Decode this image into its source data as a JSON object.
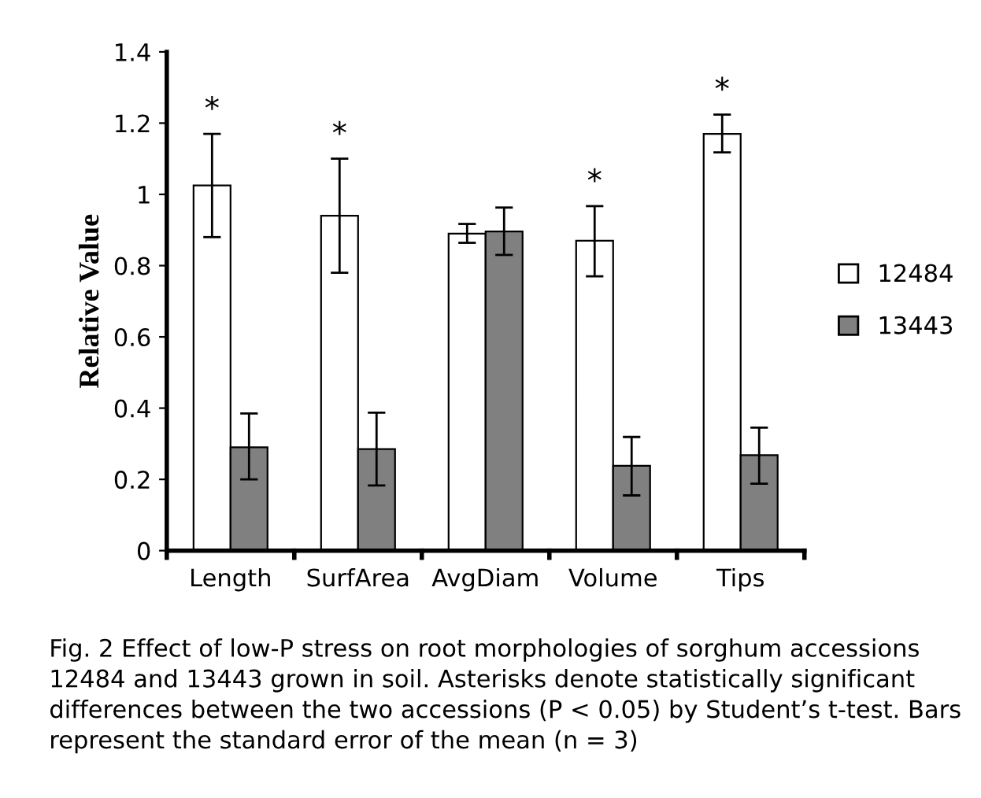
{
  "chart_data": {
    "type": "bar",
    "ylabel": "Relative Value",
    "categories": [
      "Length",
      "SurfArea",
      "AvgDiam",
      "Volume",
      "Tips"
    ],
    "series": [
      {
        "name": "12484",
        "color": "#ffffff",
        "values": [
          1.025,
          0.94,
          0.89,
          0.87,
          1.17
        ],
        "value_labels": [
          "*",
          "*",
          null,
          "*",
          "*"
        ],
        "errors": [
          [
            0.88,
            1.17
          ],
          [
            0.78,
            1.1
          ],
          [
            0.864,
            0.917
          ],
          [
            0.77,
            0.967
          ],
          [
            1.118,
            1.224
          ]
        ]
      },
      {
        "name": "13443",
        "color": "#808080",
        "values": [
          0.29,
          0.285,
          0.896,
          0.238,
          0.268
        ],
        "errors": [
          [
            0.2,
            0.385
          ],
          [
            0.183,
            0.387
          ],
          [
            0.83,
            0.963
          ],
          [
            0.155,
            0.319
          ],
          [
            0.188,
            0.345
          ]
        ]
      }
    ],
    "ylim": [
      0,
      1.4
    ],
    "yticks": [
      0,
      0.2,
      0.4,
      0.6,
      0.8,
      1,
      1.2,
      1.4
    ],
    "grid": false,
    "legend": "right",
    "annotations": [
      "Fig. 2 Effect of low-P stress on root morphologies of sorghum accessions 12484 and 13443 grown in soil. Asterisks denote statistically significant differences between the two accessions (P < 0.05) by Student’s t-test. Bars represent the standard error of the mean (n = 3)"
    ]
  }
}
